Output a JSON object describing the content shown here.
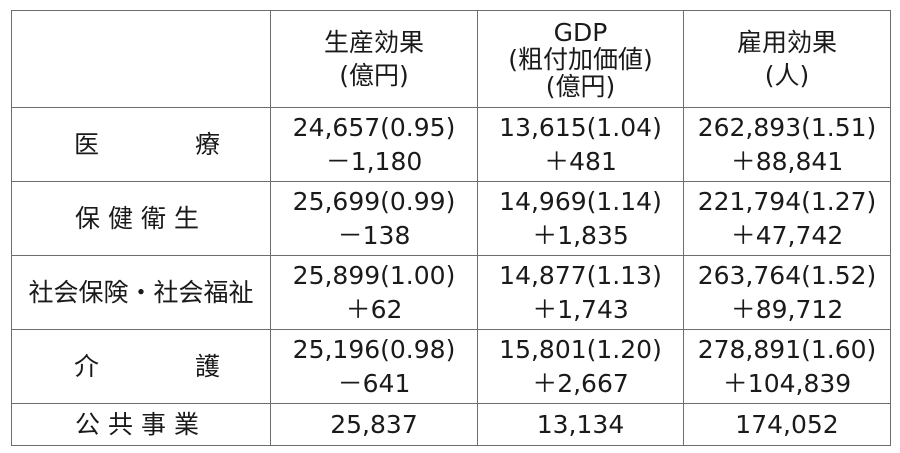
{
  "headers": {
    "production": [
      "生産効果",
      "(億円)"
    ],
    "gdp": [
      "GDP",
      "(粗付加価値)",
      "(億円)"
    ],
    "employment": [
      "雇用効果",
      "(人)"
    ]
  },
  "rows": [
    {
      "label": [
        "医",
        "療"
      ],
      "production": [
        "24,657(0.95)",
        "－1,180"
      ],
      "gdp": [
        "13,615(1.04)",
        "＋481"
      ],
      "employment": [
        "262,893(1.51)",
        "＋88,841"
      ]
    },
    {
      "label": "保健衛生",
      "production": [
        "25,699(0.99)",
        "－138"
      ],
      "gdp": [
        "14,969(1.14)",
        "＋1,835"
      ],
      "employment": [
        "221,794(1.27)",
        "＋47,742"
      ]
    },
    {
      "label": "社会保険・社会福祉",
      "production": [
        "25,899(1.00)",
        "＋62"
      ],
      "gdp": [
        "14,877(1.13)",
        "＋1,743"
      ],
      "employment": [
        "263,764(1.52)",
        "＋89,712"
      ]
    },
    {
      "label": [
        "介",
        "護"
      ],
      "production": [
        "25,196(0.98)",
        "－641"
      ],
      "gdp": [
        "15,801(1.20)",
        "＋2,667"
      ],
      "employment": [
        "278,891(1.60)",
        "＋104,839"
      ]
    },
    {
      "label": "公共事業",
      "production": [
        "25,837"
      ],
      "gdp": [
        "13,134"
      ],
      "employment": [
        "174,052"
      ]
    }
  ]
}
